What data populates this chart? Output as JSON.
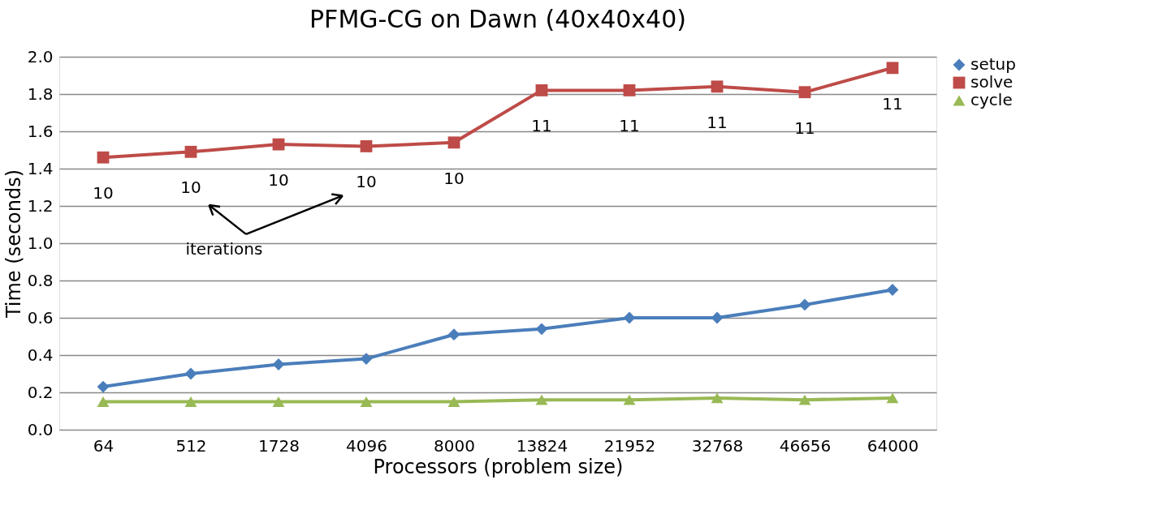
{
  "chart_data": {
    "type": "line",
    "title": "PFMG-CG on Dawn (40x40x40)",
    "xlabel": "Processors (problem size)",
    "ylabel": "Time (seconds)",
    "categories": [
      "64",
      "512",
      "1728",
      "4096",
      "8000",
      "13824",
      "21952",
      "32768",
      "46656",
      "64000"
    ],
    "series": [
      {
        "name": "setup",
        "color": "#4a7ebb",
        "marker": "diamond",
        "values": [
          0.23,
          0.3,
          0.35,
          0.38,
          0.51,
          0.54,
          0.6,
          0.6,
          0.67,
          0.75
        ]
      },
      {
        "name": "solve",
        "color": "#be4b48",
        "marker": "square",
        "values": [
          1.46,
          1.49,
          1.53,
          1.52,
          1.54,
          1.82,
          1.82,
          1.84,
          1.81,
          1.94
        ]
      },
      {
        "name": "cycle",
        "color": "#98b954",
        "marker": "triangle",
        "values": [
          0.15,
          0.15,
          0.15,
          0.15,
          0.15,
          0.16,
          0.16,
          0.17,
          0.16,
          0.17
        ]
      }
    ],
    "ylim": [
      0,
      2
    ],
    "yticks": [
      {
        "value": 0,
        "label": "0.0"
      },
      {
        "value": 0.2,
        "label": "0.2"
      },
      {
        "value": 0.4,
        "label": "0.4"
      },
      {
        "value": 0.6,
        "label": "0.6"
      },
      {
        "value": 0.8,
        "label": "0.8"
      },
      {
        "value": 1,
        "label": "1.0"
      },
      {
        "value": 1.2,
        "label": "1.2"
      },
      {
        "value": 1.4,
        "label": "1.4"
      },
      {
        "value": 1.6,
        "label": "1.6"
      },
      {
        "value": 1.8,
        "label": "1.8"
      },
      {
        "value": 2,
        "label": "2.0"
      }
    ],
    "grid": "y",
    "legend": "right",
    "line_style": "solid",
    "annotations": [
      "10",
      "10",
      "10",
      "10",
      "10",
      "11",
      "11",
      "11",
      "11",
      "11",
      "iterations"
    ]
  }
}
